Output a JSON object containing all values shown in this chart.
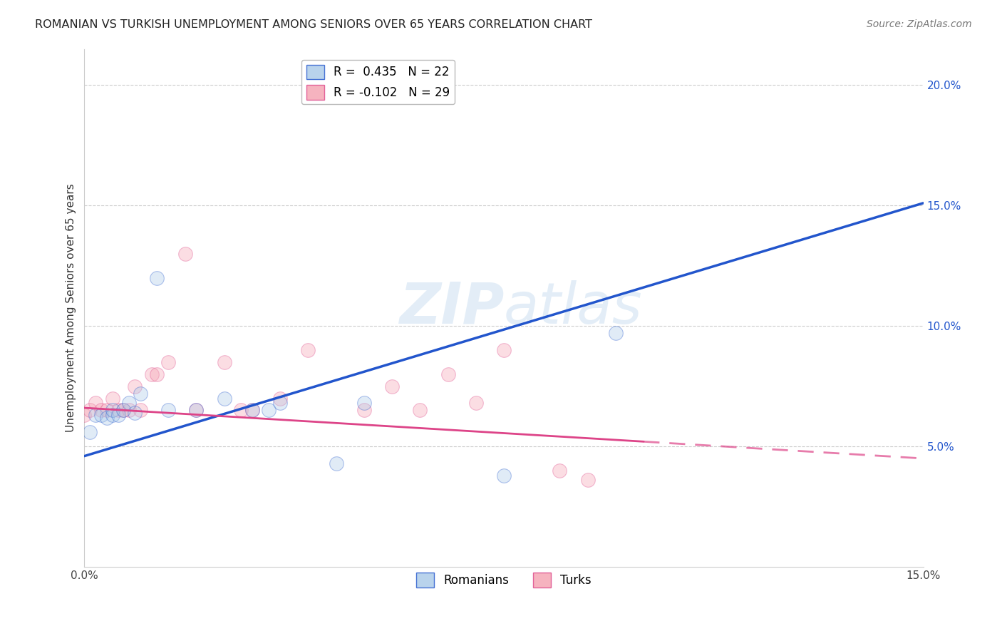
{
  "title": "ROMANIAN VS TURKISH UNEMPLOYMENT AMONG SENIORS OVER 65 YEARS CORRELATION CHART",
  "source": "Source: ZipAtlas.com",
  "ylabel": "Unemployment Among Seniors over 65 years",
  "xlim": [
    0.0,
    0.15
  ],
  "ylim": [
    0.0,
    0.215
  ],
  "ytick_vals": [
    0.05,
    0.1,
    0.15,
    0.2
  ],
  "ytick_labels": [
    "5.0%",
    "10.0%",
    "15.0%",
    "20.0%"
  ],
  "xtick_vals": [
    0.0,
    0.025,
    0.05,
    0.075,
    0.1,
    0.125,
    0.15
  ],
  "xtick_labels": [
    "0.0%",
    "",
    "",
    "",
    "",
    "",
    "15.0%"
  ],
  "blue_color": "#a8c8e8",
  "pink_color": "#f4a0b0",
  "line_blue": "#2255cc",
  "line_pink": "#dd4488",
  "watermark": "ZIPatlas",
  "romanians_x": [
    0.001,
    0.002,
    0.003,
    0.004,
    0.005,
    0.005,
    0.006,
    0.007,
    0.008,
    0.009,
    0.01,
    0.013,
    0.015,
    0.02,
    0.025,
    0.03,
    0.033,
    0.035,
    0.045,
    0.05,
    0.075,
    0.095
  ],
  "romanians_y": [
    0.056,
    0.063,
    0.063,
    0.062,
    0.063,
    0.065,
    0.063,
    0.065,
    0.068,
    0.064,
    0.072,
    0.12,
    0.065,
    0.065,
    0.07,
    0.065,
    0.065,
    0.068,
    0.043,
    0.068,
    0.038,
    0.097
  ],
  "turks_x": [
    0.0,
    0.001,
    0.002,
    0.003,
    0.004,
    0.005,
    0.006,
    0.007,
    0.008,
    0.009,
    0.01,
    0.012,
    0.013,
    0.015,
    0.018,
    0.02,
    0.025,
    0.028,
    0.03,
    0.035,
    0.04,
    0.05,
    0.055,
    0.06,
    0.065,
    0.07,
    0.075,
    0.085,
    0.09
  ],
  "turks_y": [
    0.063,
    0.065,
    0.068,
    0.065,
    0.065,
    0.07,
    0.065,
    0.065,
    0.065,
    0.075,
    0.065,
    0.08,
    0.08,
    0.085,
    0.13,
    0.065,
    0.085,
    0.065,
    0.065,
    0.07,
    0.09,
    0.065,
    0.075,
    0.065,
    0.08,
    0.068,
    0.09,
    0.04,
    0.036
  ],
  "marker_size": 200,
  "alpha_fill": 0.35,
  "alpha_edge": 0.8
}
